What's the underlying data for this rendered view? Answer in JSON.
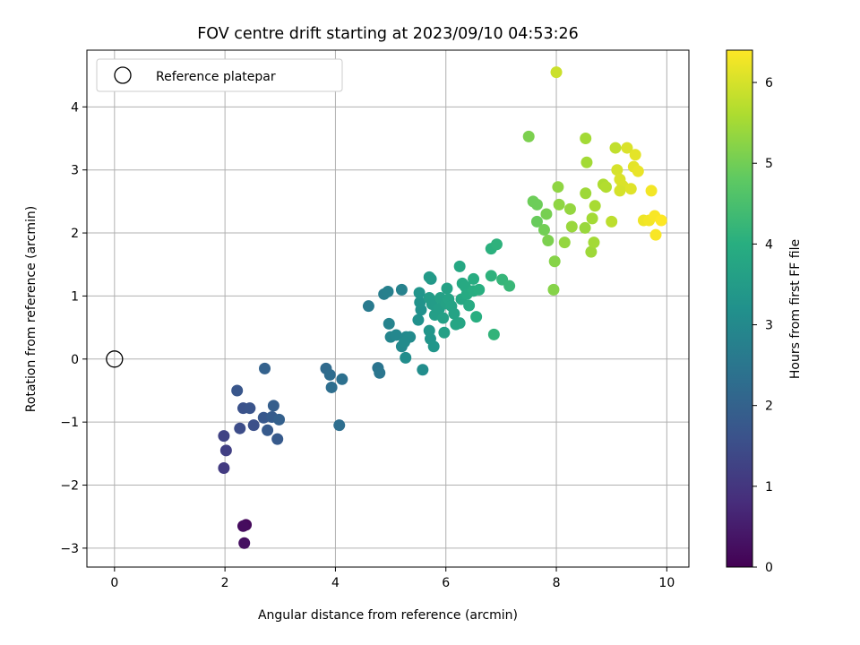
{
  "chart_data": {
    "type": "scatter",
    "title": "FOV centre drift starting at 2023/09/10 04:53:26",
    "xlabel": "Angular distance from reference (arcmin)",
    "ylabel": "Rotation from reference (arcmin)",
    "xlim": [
      -0.5,
      10.4
    ],
    "ylim": [
      -3.3,
      4.9
    ],
    "x_ticks": [
      0,
      2,
      4,
      6,
      8,
      10
    ],
    "y_ticks": [
      -3,
      -2,
      -1,
      0,
      1,
      2,
      3,
      4
    ],
    "grid": true,
    "legend": {
      "placement": "top-left",
      "entries": [
        "Reference platepar"
      ]
    },
    "reference_point": {
      "x": 0,
      "y": 0
    },
    "colorbar": {
      "label": "Hours from first FF file",
      "range": [
        0,
        6.4
      ],
      "ticks": [
        0,
        1,
        2,
        3,
        4,
        5,
        6
      ],
      "colormap": "viridis"
    },
    "points": [
      {
        "x": 2.38,
        "y": -2.63,
        "c": 0.15
      },
      {
        "x": 2.33,
        "y": -2.65,
        "c": 0.2
      },
      {
        "x": 2.35,
        "y": -2.92,
        "c": 0.25
      },
      {
        "x": 1.98,
        "y": -1.73,
        "c": 1.1
      },
      {
        "x": 2.02,
        "y": -1.45,
        "c": 1.2
      },
      {
        "x": 1.98,
        "y": -1.22,
        "c": 1.25
      },
      {
        "x": 2.22,
        "y": -0.5,
        "c": 1.7
      },
      {
        "x": 2.33,
        "y": -0.78,
        "c": 1.6
      },
      {
        "x": 2.45,
        "y": -0.78,
        "c": 1.65
      },
      {
        "x": 2.27,
        "y": -1.1,
        "c": 1.5
      },
      {
        "x": 2.52,
        "y": -1.05,
        "c": 1.55
      },
      {
        "x": 2.7,
        "y": -0.93,
        "c": 1.75
      },
      {
        "x": 2.77,
        "y": -1.13,
        "c": 1.8
      },
      {
        "x": 2.85,
        "y": -0.92,
        "c": 1.85
      },
      {
        "x": 2.88,
        "y": -0.74,
        "c": 1.9
      },
      {
        "x": 2.98,
        "y": -0.96,
        "c": 1.95
      },
      {
        "x": 2.95,
        "y": -1.27,
        "c": 1.8
      },
      {
        "x": 2.72,
        "y": -0.15,
        "c": 2.0
      },
      {
        "x": 3.83,
        "y": -0.15,
        "c": 2.2
      },
      {
        "x": 3.9,
        "y": -0.25,
        "c": 2.25
      },
      {
        "x": 3.93,
        "y": -0.45,
        "c": 2.3
      },
      {
        "x": 4.12,
        "y": -0.32,
        "c": 2.35
      },
      {
        "x": 4.07,
        "y": -1.05,
        "c": 2.3
      },
      {
        "x": 4.77,
        "y": -0.14,
        "c": 2.45
      },
      {
        "x": 4.8,
        "y": -0.22,
        "c": 2.5
      },
      {
        "x": 4.6,
        "y": 0.84,
        "c": 2.6
      },
      {
        "x": 4.88,
        "y": 1.03,
        "c": 2.7
      },
      {
        "x": 4.95,
        "y": 1.07,
        "c": 2.75
      },
      {
        "x": 5.2,
        "y": 1.1,
        "c": 2.8
      },
      {
        "x": 4.97,
        "y": 0.56,
        "c": 2.85
      },
      {
        "x": 5.0,
        "y": 0.35,
        "c": 2.9
      },
      {
        "x": 5.1,
        "y": 0.38,
        "c": 2.95
      },
      {
        "x": 5.2,
        "y": 0.2,
        "c": 3.0
      },
      {
        "x": 5.28,
        "y": 0.35,
        "c": 3.0
      },
      {
        "x": 5.35,
        "y": 0.35,
        "c": 3.05
      },
      {
        "x": 5.25,
        "y": 0.27,
        "c": 3.05
      },
      {
        "x": 5.27,
        "y": 0.02,
        "c": 3.1
      },
      {
        "x": 5.58,
        "y": -0.17,
        "c": 3.1
      },
      {
        "x": 5.5,
        "y": 0.62,
        "c": 3.2
      },
      {
        "x": 5.55,
        "y": 0.78,
        "c": 3.2
      },
      {
        "x": 5.53,
        "y": 0.9,
        "c": 3.25
      },
      {
        "x": 5.52,
        "y": 1.05,
        "c": 3.3
      },
      {
        "x": 5.72,
        "y": 0.32,
        "c": 3.3
      },
      {
        "x": 5.7,
        "y": 0.45,
        "c": 3.35
      },
      {
        "x": 5.78,
        "y": 0.2,
        "c": 3.35
      },
      {
        "x": 5.73,
        "y": 1.27,
        "c": 3.4
      },
      {
        "x": 5.7,
        "y": 1.3,
        "c": 3.45
      },
      {
        "x": 5.7,
        "y": 0.97,
        "c": 3.5
      },
      {
        "x": 5.75,
        "y": 0.87,
        "c": 3.5
      },
      {
        "x": 5.8,
        "y": 0.7,
        "c": 3.55
      },
      {
        "x": 5.88,
        "y": 0.8,
        "c": 3.55
      },
      {
        "x": 5.9,
        "y": 0.97,
        "c": 3.6
      },
      {
        "x": 5.95,
        "y": 0.65,
        "c": 3.6
      },
      {
        "x": 5.97,
        "y": 0.42,
        "c": 3.6
      },
      {
        "x": 6.0,
        "y": 0.88,
        "c": 3.65
      },
      {
        "x": 6.02,
        "y": 1.12,
        "c": 3.65
      },
      {
        "x": 6.05,
        "y": 0.95,
        "c": 3.7
      },
      {
        "x": 6.1,
        "y": 0.84,
        "c": 3.7
      },
      {
        "x": 6.15,
        "y": 0.72,
        "c": 3.7
      },
      {
        "x": 6.18,
        "y": 0.55,
        "c": 3.75
      },
      {
        "x": 6.25,
        "y": 0.57,
        "c": 3.75
      },
      {
        "x": 6.28,
        "y": 0.95,
        "c": 3.8
      },
      {
        "x": 6.25,
        "y": 1.47,
        "c": 3.8
      },
      {
        "x": 6.3,
        "y": 1.2,
        "c": 3.85
      },
      {
        "x": 6.35,
        "y": 1.15,
        "c": 3.85
      },
      {
        "x": 6.38,
        "y": 1.03,
        "c": 3.9
      },
      {
        "x": 6.42,
        "y": 0.85,
        "c": 3.9
      },
      {
        "x": 6.5,
        "y": 1.08,
        "c": 3.95
      },
      {
        "x": 6.5,
        "y": 1.27,
        "c": 3.95
      },
      {
        "x": 6.55,
        "y": 0.67,
        "c": 4.0
      },
      {
        "x": 6.6,
        "y": 1.1,
        "c": 4.0
      },
      {
        "x": 6.82,
        "y": 1.75,
        "c": 4.05
      },
      {
        "x": 6.92,
        "y": 1.82,
        "c": 4.1
      },
      {
        "x": 6.82,
        "y": 1.32,
        "c": 4.1
      },
      {
        "x": 6.87,
        "y": 0.39,
        "c": 4.15
      },
      {
        "x": 7.02,
        "y": 1.26,
        "c": 4.2
      },
      {
        "x": 7.15,
        "y": 1.16,
        "c": 4.25
      },
      {
        "x": 7.5,
        "y": 3.53,
        "c": 5.1
      },
      {
        "x": 7.58,
        "y": 2.5,
        "c": 4.95
      },
      {
        "x": 7.65,
        "y": 2.45,
        "c": 4.95
      },
      {
        "x": 7.65,
        "y": 2.18,
        "c": 4.9
      },
      {
        "x": 7.78,
        "y": 2.05,
        "c": 5.0
      },
      {
        "x": 7.82,
        "y": 2.3,
        "c": 5.05
      },
      {
        "x": 7.85,
        "y": 1.88,
        "c": 5.1
      },
      {
        "x": 7.95,
        "y": 1.1,
        "c": 5.2
      },
      {
        "x": 7.97,
        "y": 1.55,
        "c": 5.2
      },
      {
        "x": 8.0,
        "y": 4.55,
        "c": 5.9
      },
      {
        "x": 8.03,
        "y": 2.73,
        "c": 5.3
      },
      {
        "x": 8.05,
        "y": 2.45,
        "c": 5.3
      },
      {
        "x": 8.15,
        "y": 1.85,
        "c": 5.35
      },
      {
        "x": 8.25,
        "y": 2.38,
        "c": 5.35
      },
      {
        "x": 8.28,
        "y": 2.1,
        "c": 5.4
      },
      {
        "x": 8.53,
        "y": 3.5,
        "c": 5.5
      },
      {
        "x": 8.55,
        "y": 3.12,
        "c": 5.5
      },
      {
        "x": 8.53,
        "y": 2.63,
        "c": 5.45
      },
      {
        "x": 8.52,
        "y": 2.08,
        "c": 5.4
      },
      {
        "x": 8.63,
        "y": 1.7,
        "c": 5.45
      },
      {
        "x": 8.65,
        "y": 2.23,
        "c": 5.5
      },
      {
        "x": 8.68,
        "y": 1.85,
        "c": 5.5
      },
      {
        "x": 8.7,
        "y": 2.43,
        "c": 5.55
      },
      {
        "x": 8.85,
        "y": 2.77,
        "c": 5.6
      },
      {
        "x": 8.9,
        "y": 2.73,
        "c": 5.65
      },
      {
        "x": 9.0,
        "y": 2.18,
        "c": 5.75
      },
      {
        "x": 9.07,
        "y": 3.35,
        "c": 5.8
      },
      {
        "x": 9.1,
        "y": 3.0,
        "c": 6.0
      },
      {
        "x": 9.15,
        "y": 2.85,
        "c": 6.05
      },
      {
        "x": 9.2,
        "y": 2.75,
        "c": 6.05
      },
      {
        "x": 9.15,
        "y": 2.67,
        "c": 6.0
      },
      {
        "x": 9.28,
        "y": 3.35,
        "c": 6.05
      },
      {
        "x": 9.35,
        "y": 2.7,
        "c": 6.1
      },
      {
        "x": 9.4,
        "y": 3.05,
        "c": 6.15
      },
      {
        "x": 9.43,
        "y": 3.24,
        "c": 6.15
      },
      {
        "x": 9.48,
        "y": 2.98,
        "c": 6.2
      },
      {
        "x": 9.58,
        "y": 2.2,
        "c": 6.25
      },
      {
        "x": 9.68,
        "y": 2.2,
        "c": 6.3
      },
      {
        "x": 9.72,
        "y": 2.67,
        "c": 6.3
      },
      {
        "x": 9.78,
        "y": 2.27,
        "c": 6.35
      },
      {
        "x": 9.8,
        "y": 1.97,
        "c": 6.35
      },
      {
        "x": 9.9,
        "y": 2.2,
        "c": 6.4
      }
    ]
  }
}
